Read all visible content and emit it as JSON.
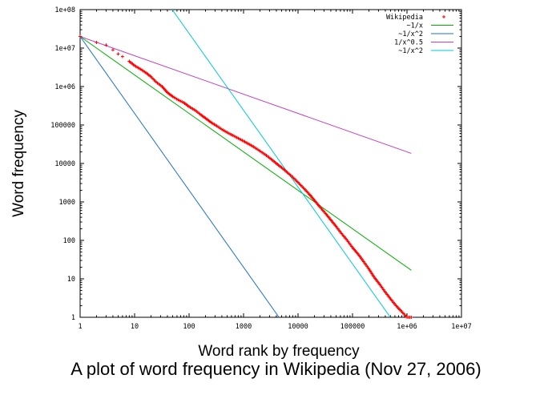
{
  "caption": "A plot of word frequency in Wikipedia (Nov 27, 2006)",
  "chart_data": {
    "type": "scatter",
    "title": "",
    "xlabel": "Word rank by frequency",
    "ylabel": "Word frequency",
    "xscale": "log",
    "yscale": "log",
    "xlim": [
      1,
      10000000
    ],
    "ylim": [
      1,
      100000000
    ],
    "grid": false,
    "legend_position": "top-right",
    "x_tick_labels": [
      "1",
      "10",
      "100",
      "1000",
      "10000",
      "100000",
      "1e+06",
      "1e+07"
    ],
    "y_tick_labels": [
      "1",
      "10",
      "100",
      "1000",
      "10000",
      "100000",
      "1e+06",
      "1e+07",
      "1e+08"
    ],
    "series": [
      {
        "name": "Wikipedia",
        "style": "points",
        "marker": "+",
        "color": "#ff0000",
        "x": [
          1,
          2,
          3,
          4,
          5,
          6,
          8,
          10,
          13,
          16,
          20,
          25,
          32,
          40,
          50,
          63,
          80,
          100,
          130,
          160,
          200,
          250,
          320,
          400,
          500,
          630,
          800,
          1000,
          1300,
          1600,
          2000,
          2500,
          3200,
          4000,
          5000,
          6300,
          8000,
          10000,
          13000,
          16000,
          20000,
          25000,
          32000,
          40000,
          50000,
          63000,
          80000,
          100000,
          130000,
          160000,
          200000,
          250000,
          320000,
          400000,
          500000,
          630000,
          800000,
          1000000,
          1200000
        ],
        "y": [
          20000000,
          14000000,
          12000000,
          9000000,
          7000000,
          6000000,
          4500000,
          3500000,
          2800000,
          2300000,
          1800000,
          1300000,
          1000000,
          700000,
          550000,
          450000,
          380000,
          300000,
          240000,
          190000,
          150000,
          118000,
          95000,
          77000,
          64000,
          54000,
          45000,
          38000,
          31000,
          26000,
          21000,
          17000,
          13000,
          10000,
          7800,
          5900,
          4400,
          3200,
          2200,
          1600,
          1100,
          750,
          500,
          340,
          230,
          150,
          100,
          65,
          42,
          28,
          18,
          11,
          7,
          4.5,
          3,
          2,
          1.4,
          1,
          1
        ]
      },
      {
        "name": "~1/x",
        "style": "line",
        "color": "#00b000",
        "x": [
          1,
          1200000
        ],
        "y": [
          20000000,
          16.7
        ]
      },
      {
        "name": "~1/x^2",
        "style": "line",
        "color": "#1f6fcf",
        "x": [
          1,
          4472
        ],
        "y": [
          20000000,
          1
        ]
      },
      {
        "name": "1/x^0.5",
        "style": "line",
        "color": "#c040c0",
        "x": [
          1,
          1200000
        ],
        "y": [
          20000000,
          18257
        ]
      },
      {
        "name": "~1/x^2",
        "style": "line",
        "color": "#00c8d8",
        "x": [
          49,
          700000
        ],
        "y": [
          100000000,
          0.5
        ]
      }
    ]
  }
}
